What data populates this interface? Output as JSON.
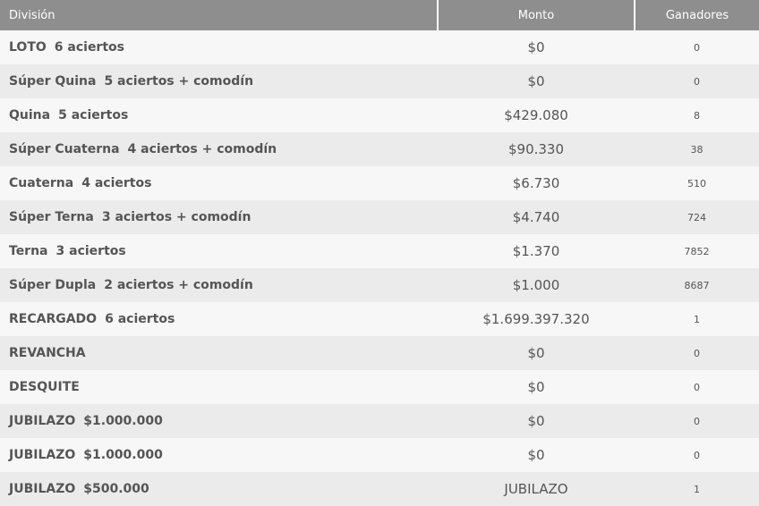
{
  "headers": {
    "division": "División",
    "monto": "Monto",
    "ganadores": "Ganadores"
  },
  "rows": [
    {
      "name": "LOTO",
      "detail": "6 aciertos",
      "monto": "$0",
      "ganadores": "0"
    },
    {
      "name": "Súper Quina",
      "detail": "5 aciertos + comodín",
      "monto": "$0",
      "ganadores": "0"
    },
    {
      "name": "Quina",
      "detail": "5 aciertos",
      "monto": "$429.080",
      "ganadores": "8"
    },
    {
      "name": "Súper Cuaterna",
      "detail": "4 aciertos + comodín",
      "monto": "$90.330",
      "ganadores": "38"
    },
    {
      "name": "Cuaterna",
      "detail": "4 aciertos",
      "monto": "$6.730",
      "ganadores": "510"
    },
    {
      "name": "Súper Terna",
      "detail": "3 aciertos + comodín",
      "monto": "$4.740",
      "ganadores": "724"
    },
    {
      "name": "Terna",
      "detail": "3 aciertos",
      "monto": "$1.370",
      "ganadores": "7852"
    },
    {
      "name": "Súper Dupla",
      "detail": "2 aciertos + comodín",
      "monto": "$1.000",
      "ganadores": "8687"
    },
    {
      "name": "RECARGADO",
      "detail": "6 aciertos",
      "monto": "$1.699.397.320",
      "ganadores": "1"
    },
    {
      "name": "REVANCHA",
      "detail": "",
      "monto": "$0",
      "ganadores": "0"
    },
    {
      "name": "DESQUITE",
      "detail": "",
      "monto": "$0",
      "ganadores": "0"
    },
    {
      "name": "JUBILAZO",
      "detail": "$1.000.000",
      "monto": "$0",
      "ganadores": "0"
    },
    {
      "name": "JUBILAZO",
      "detail": "$1.000.000",
      "monto": "$0",
      "ganadores": "0"
    },
    {
      "name": "JUBILAZO",
      "detail": "$500.000",
      "monto": "JUBILAZO",
      "ganadores": "1"
    }
  ],
  "colors": {
    "header_bg": "#8e8e8e",
    "row_light": "#f7f7f7",
    "row_dark": "#ebebeb",
    "text": "#555555"
  }
}
